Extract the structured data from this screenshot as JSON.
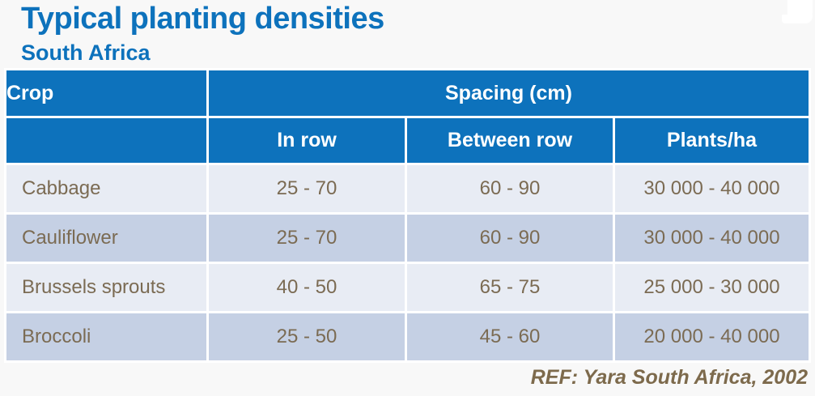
{
  "slide": {
    "title": "Typical planting densities",
    "subtitle": "South Africa",
    "reference": "REF: Yara South Africa, 2002"
  },
  "table": {
    "header": {
      "crop": "Crop",
      "spacing": "Spacing (cm)",
      "columns": [
        "In row",
        "Between row",
        "Plants/ha"
      ]
    },
    "rows": [
      {
        "crop": "Cabbage",
        "in_row": "25 - 70",
        "between_row": "60 - 90",
        "plants_per_ha": "30 000 - 40 000"
      },
      {
        "crop": "Cauliflower",
        "in_row": "25 - 70",
        "between_row": "60 - 90",
        "plants_per_ha": "30 000 - 40 000"
      },
      {
        "crop": "Brussels sprouts",
        "in_row": "40 - 50",
        "between_row": "65 - 75",
        "plants_per_ha": "25 000 - 30 000"
      },
      {
        "crop": "Broccoli",
        "in_row": "25 - 50",
        "between_row": "45 - 60",
        "plants_per_ha": "20 000 - 40 000"
      }
    ]
  },
  "colors": {
    "accent_blue": "#0d72bc",
    "row_light": "#e8ecf4",
    "row_dark": "#c5d0e4",
    "body_text": "#7b6b53",
    "reference_text": "#7d6a4c",
    "background": "#f8f8f8",
    "grid_gap": "#ffffff"
  }
}
